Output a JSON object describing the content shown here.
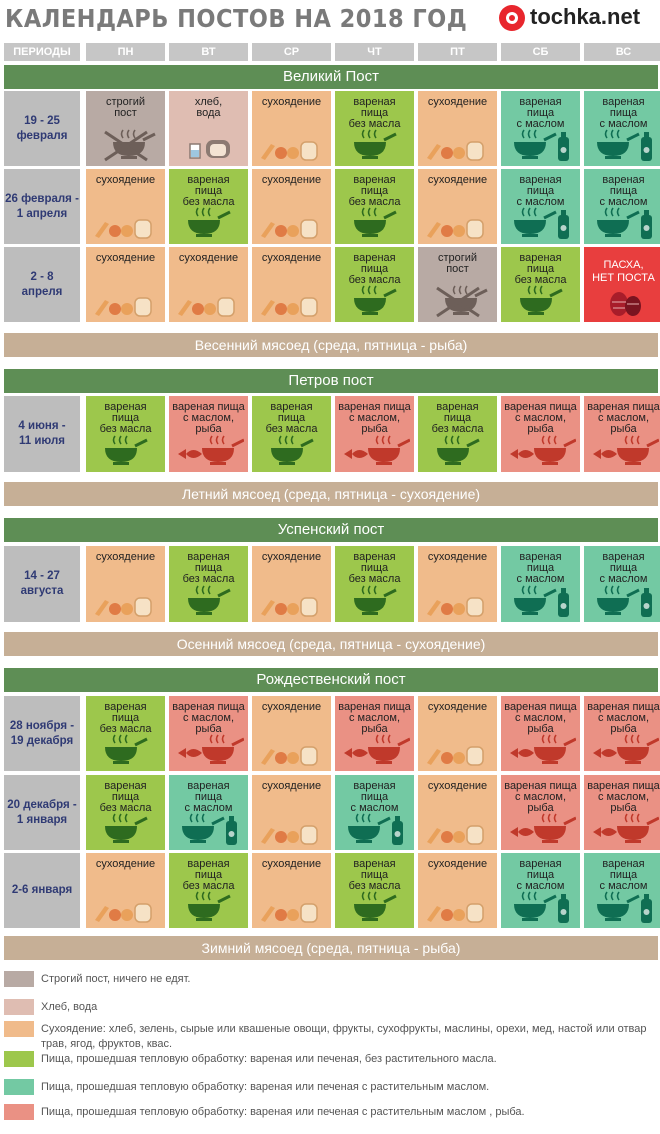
{
  "title": "КАЛЕНДАРЬ ПОСТОВ НА 2018 ГОД",
  "logo_text": "tochka.net",
  "columns": [
    "ПЕРИОДЫ",
    "ПН",
    "ВТ",
    "СР",
    "ЧТ",
    "ПТ",
    "СБ",
    "ВС"
  ],
  "colors": {
    "strict": "#b8aaa4",
    "bread": "#dfbdb2",
    "dry": "#f0bb8b",
    "boiled": "#9dc74c",
    "oil": "#73c9a3",
    "fish": "#ea9184",
    "easter": "#e83e3e",
    "band_fast": "#5e8e55",
    "band_meat": "#c6af96"
  },
  "labels": {
    "strict": "строгий\nпост",
    "bread": "хлеб,\nвода",
    "dry": "сухоядение",
    "boiled": "вареная\nпища\nбез масла",
    "oil": "вареная\nпища\nс маслом",
    "fish": "вареная пища\nс маслом,\nрыба",
    "fish2": "вареная\nпища\nс маслом,\nрыба",
    "easter": "ПАСХА,\nНЕТ ПОСТА"
  },
  "sections": [
    {
      "name": "Великий Пост",
      "rows": [
        {
          "period": "19 - 25\nфевраля",
          "cells": [
            "strict",
            "bread",
            "dry",
            "boiled",
            "dry",
            "oil",
            "oil"
          ]
        },
        {
          "period": "26 февраля -\n1 апреля",
          "cells": [
            "dry",
            "boiled",
            "dry",
            "boiled",
            "dry",
            "oil",
            "oil"
          ]
        },
        {
          "period": "2 - 8\nапреля",
          "cells": [
            "dry",
            "dry",
            "dry",
            "boiled",
            "strict",
            "boiled",
            "easter"
          ]
        }
      ],
      "meat": "Весенний мясоед (среда, пятница - рыба)"
    },
    {
      "name": "Петров пост",
      "rows": [
        {
          "period": "4 июня -\n11 июля",
          "cells": [
            "boiled",
            "fish",
            "boiled",
            "fish",
            "boiled",
            "fish",
            "fish"
          ]
        }
      ],
      "meat": "Летний мясоед (среда, пятница - сухоядение)"
    },
    {
      "name": "Успенский пост",
      "rows": [
        {
          "period": "14 - 27\nавгуста",
          "cells": [
            "dry",
            "boiled",
            "dry",
            "boiled",
            "dry",
            "oil",
            "oil"
          ]
        }
      ],
      "meat": "Осенний мясоед (среда, пятница - сухоядение)"
    },
    {
      "name": "Рождественский пост",
      "rows": [
        {
          "period": "28 ноября -\n19 декабря",
          "cells": [
            "boiled",
            "fish",
            "dry",
            "fish",
            "dry",
            "fish",
            "fish"
          ]
        },
        {
          "period": "20 декабря -\n1 января",
          "cells": [
            "boiled",
            "oil",
            "dry",
            "oil",
            "dry",
            "fish",
            "fish"
          ]
        },
        {
          "period": "2-6 января",
          "cells": [
            "dry",
            "boiled",
            "dry",
            "boiled",
            "dry",
            "oil",
            "oil"
          ]
        }
      ],
      "meat": "Зимний мясоед (среда, пятница - рыба)"
    }
  ],
  "legend": [
    {
      "type": "strict",
      "text": "Строгий пост, ничего не едят."
    },
    {
      "type": "bread",
      "text": "Хлеб, вода"
    },
    {
      "type": "dry",
      "text": "Сухоядение: хлеб, зелень, сырые или квашеные овощи, фрукты, сухофрукты, маслины, орехи, мед, настой или отвар трав, ягод, фруктов, квас."
    },
    {
      "type": "boiled",
      "text": "Пища, прошедшая тепловую обработку: вареная или печеная, без растительного масла."
    },
    {
      "type": "oil",
      "text": "Пища, прошедшая тепловую обработку: вареная или печеная с растительным маслом."
    },
    {
      "type": "fish",
      "text": "Пища, прошедшая тепловую обработку: вареная или печеная с растительным маслом , рыба."
    }
  ]
}
